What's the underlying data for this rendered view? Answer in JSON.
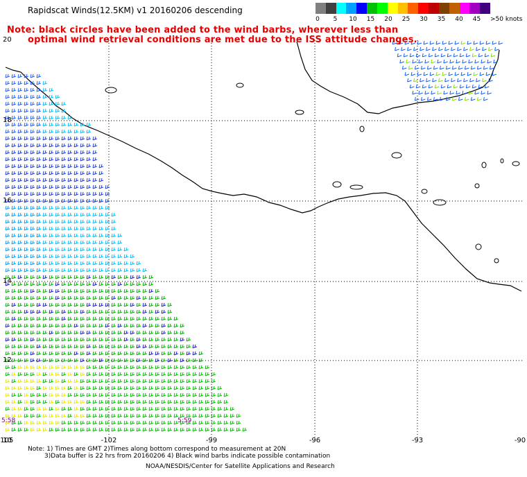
{
  "title": "Rapidscat Winds(12.5KM) v1 20160206 descending",
  "notes": [
    "Note: black circles have been added to the wind barbs, wherever less than",
    "optimal wind retrieval conditions are met due to the ISS attitude changes."
  ],
  "legend": {
    "ticks": [
      "0",
      "5",
      "10",
      "15",
      "20",
      "25",
      "30",
      "35",
      "40",
      "45"
    ],
    "unit": ">50 knots",
    "colors": [
      "#808080",
      "#404040",
      "#00ffff",
      "#00a0ff",
      "#0000ff",
      "#00c000",
      "#00ff00",
      "#ffff00",
      "#ffc000",
      "#ff6000",
      "#ff0000",
      "#c00000",
      "#804000",
      "#c06000",
      "#ff00ff",
      "#a000c0",
      "#400080"
    ]
  },
  "map": {
    "lat_labels": [
      "20",
      "18",
      "16",
      "14",
      "12",
      "10"
    ],
    "lon_labels": [
      "-105",
      "-102",
      "-99",
      "-96",
      "-93",
      "-90"
    ],
    "time_labels": [
      "5:58",
      "5:59"
    ]
  },
  "footer": {
    "line1": "Note: 1) Times are GMT 2)Times along bottom correspond to measurement at 20N",
    "line2": "3)Data buffer is 22 hrs from 20160206 4) Black wind barbs indicate possible contamination",
    "credit": "NOAA/NESDIS/Center for Satellite Applications and Research"
  }
}
